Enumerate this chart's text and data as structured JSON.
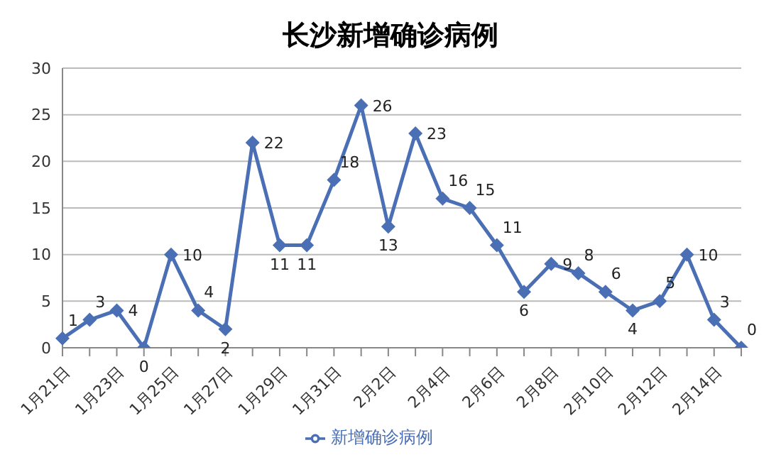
{
  "chart_data": {
    "type": "line",
    "title": "长沙新增确诊病例",
    "categories": [
      "1月21日",
      null,
      "1月23日",
      null,
      "1月25日",
      null,
      "1月27日",
      null,
      "1月29日",
      null,
      "1月31日",
      null,
      "2月2日",
      null,
      "2月4日",
      null,
      "2月6日",
      null,
      "2月8日",
      null,
      "2月10日",
      null,
      "2月12日",
      null,
      "2月14日",
      null
    ],
    "series": [
      {
        "name": "新增确诊病例",
        "color": "#4a6fb5",
        "values": [
          1,
          3,
          4,
          0,
          10,
          4,
          2,
          22,
          11,
          11,
          18,
          26,
          13,
          23,
          16,
          15,
          11,
          6,
          9,
          8,
          6,
          4,
          5,
          10,
          3,
          0
        ]
      }
    ],
    "ylim": [
      0,
      30
    ],
    "yticks": [
      0,
      5,
      10,
      15,
      20,
      25,
      30
    ],
    "grid": "y",
    "legend": "bottom",
    "marker": "diamond",
    "line_style": "solid",
    "data_labels": true
  }
}
